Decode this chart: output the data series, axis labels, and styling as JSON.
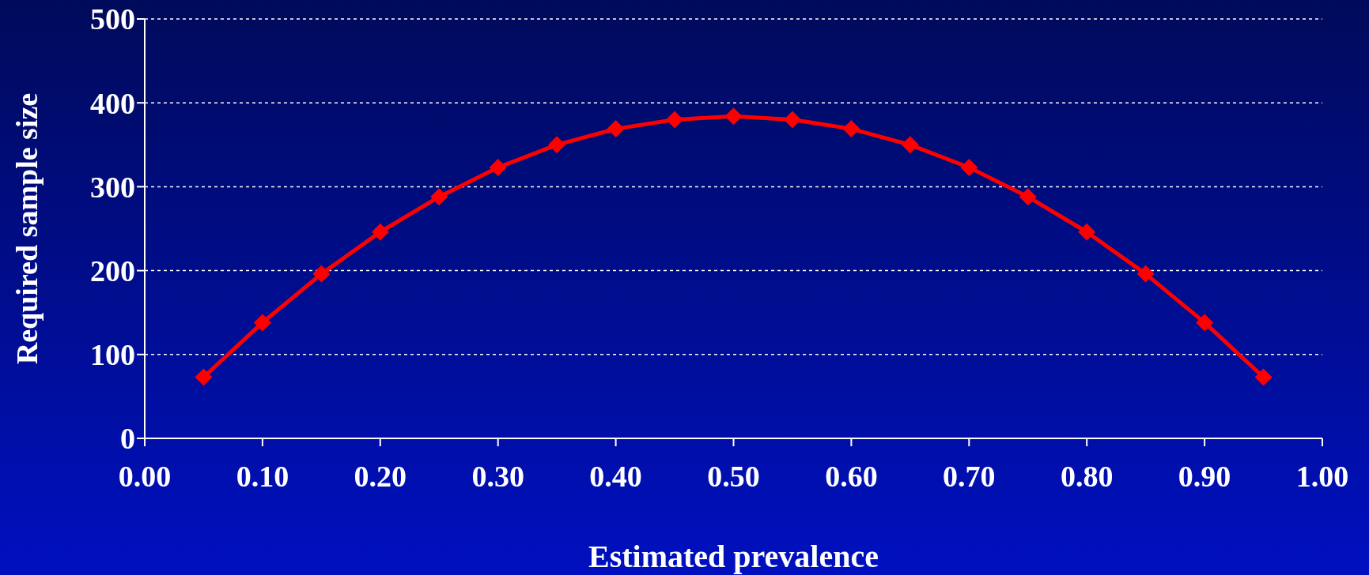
{
  "chart_data": {
    "type": "line",
    "xlabel": "Estimated prevalence",
    "ylabel": "Required sample size",
    "x": [
      0.05,
      0.1,
      0.15,
      0.2,
      0.25,
      0.3,
      0.35,
      0.4,
      0.45,
      0.5,
      0.55,
      0.6,
      0.65,
      0.7,
      0.75,
      0.8,
      0.85,
      0.9,
      0.95
    ],
    "series": [
      {
        "color": "#ff0000",
        "values": [
          73,
          138,
          196,
          246,
          288,
          323,
          350,
          369,
          380,
          384,
          380,
          369,
          350,
          323,
          288,
          246,
          196,
          138,
          73
        ]
      }
    ],
    "xlim": [
      0,
      1
    ],
    "xticks": [
      {
        "value": 0,
        "label": "0.00"
      },
      {
        "value": 0.1,
        "label": "0.10"
      },
      {
        "value": 0.2,
        "label": "0.20"
      },
      {
        "value": 0.3,
        "label": "0.30"
      },
      {
        "value": 0.4,
        "label": "0.40"
      },
      {
        "value": 0.5,
        "label": "0.50"
      },
      {
        "value": 0.6,
        "label": "0.60"
      },
      {
        "value": 0.7,
        "label": "0.70"
      },
      {
        "value": 0.8,
        "label": "0.80"
      },
      {
        "value": 0.9,
        "label": "0.90"
      },
      {
        "value": 1,
        "label": "1.00"
      }
    ],
    "ylim": [
      0,
      500
    ],
    "yticks": [
      0,
      100,
      200,
      300,
      400,
      500
    ],
    "grid": "y",
    "marker": "diamond",
    "line_style": "solid",
    "legend": false
  }
}
